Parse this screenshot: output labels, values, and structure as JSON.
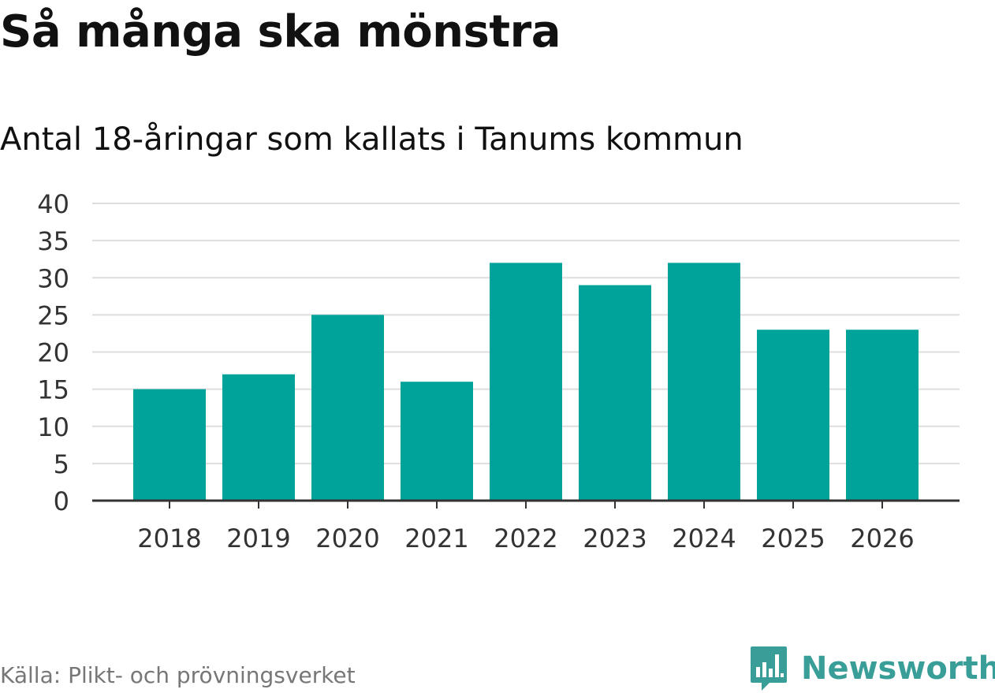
{
  "chart_data": {
    "type": "bar",
    "title": "Så många ska mönstra",
    "subtitle": "Antal 18-åringar som kallats i Tanums kommun",
    "categories": [
      "2018",
      "2019",
      "2020",
      "2021",
      "2022",
      "2023",
      "2024",
      "2025",
      "2026"
    ],
    "values": [
      15,
      17,
      25,
      16,
      32,
      29,
      32,
      23,
      23
    ],
    "ylim": [
      0,
      40
    ],
    "yticks": [
      0,
      5,
      10,
      15,
      20,
      25,
      30,
      35,
      40
    ],
    "grid": true,
    "bar_color": "#00a39a"
  },
  "source": "Källa: Plikt- och prövningsverket",
  "brand": {
    "name": "Newsworthy",
    "icon": "newsworthy-logo-icon",
    "color": "#3a9e98"
  }
}
